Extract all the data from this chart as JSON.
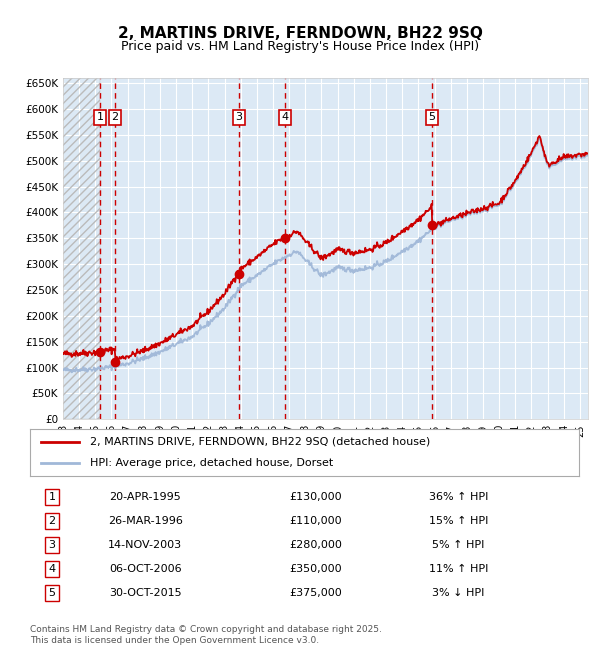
{
  "title": "2, MARTINS DRIVE, FERNDOWN, BH22 9SQ",
  "subtitle": "Price paid vs. HM Land Registry's House Price Index (HPI)",
  "ylim": [
    0,
    660000
  ],
  "yticks": [
    0,
    50000,
    100000,
    150000,
    200000,
    250000,
    300000,
    350000,
    400000,
    450000,
    500000,
    550000,
    600000,
    650000
  ],
  "ytick_labels": [
    "£0",
    "£50K",
    "£100K",
    "£150K",
    "£200K",
    "£250K",
    "£300K",
    "£350K",
    "£400K",
    "£450K",
    "£500K",
    "£550K",
    "£600K",
    "£650K"
  ],
  "xlim_start": 1993.0,
  "xlim_end": 2025.5,
  "plot_bg_color": "#dce9f5",
  "hpi_line_color": "#a0b8d8",
  "price_line_color": "#cc0000",
  "marker_color": "#cc0000",
  "vline_color": "#cc0000",
  "grid_color": "#ffffff",
  "hpi_anchors": [
    [
      1993.0,
      95000
    ],
    [
      1994.0,
      96000
    ],
    [
      1995.0,
      97500
    ],
    [
      1996.0,
      101000
    ],
    [
      1997.0,
      108000
    ],
    [
      1998.0,
      118000
    ],
    [
      1999.0,
      130000
    ],
    [
      2000.0,
      145000
    ],
    [
      2001.0,
      160000
    ],
    [
      2002.0,
      185000
    ],
    [
      2003.0,
      215000
    ],
    [
      2004.0,
      258000
    ],
    [
      2005.0,
      278000
    ],
    [
      2006.0,
      300000
    ],
    [
      2007.0,
      318000
    ],
    [
      2007.5,
      325000
    ],
    [
      2008.0,
      308000
    ],
    [
      2009.0,
      278000
    ],
    [
      2009.5,
      285000
    ],
    [
      2010.0,
      293000
    ],
    [
      2011.0,
      288000
    ],
    [
      2012.0,
      293000
    ],
    [
      2013.0,
      305000
    ],
    [
      2014.0,
      325000
    ],
    [
      2015.0,
      345000
    ],
    [
      2016.0,
      372000
    ],
    [
      2017.0,
      385000
    ],
    [
      2018.0,
      395000
    ],
    [
      2019.0,
      405000
    ],
    [
      2020.0,
      415000
    ],
    [
      2021.0,
      458000
    ],
    [
      2022.0,
      512000
    ],
    [
      2022.5,
      545000
    ],
    [
      2023.0,
      488000
    ],
    [
      2024.0,
      503000
    ],
    [
      2025.0,
      508000
    ],
    [
      2025.5,
      510000
    ]
  ],
  "sales": [
    {
      "num": 1,
      "date_dec": 1995.3,
      "price": 130000,
      "label": "20-APR-1995",
      "amount": "£130,000",
      "pct": "36%",
      "dir": "↑"
    },
    {
      "num": 2,
      "date_dec": 1996.23,
      "price": 110000,
      "label": "26-MAR-1996",
      "amount": "£110,000",
      "pct": "15%",
      "dir": "↑"
    },
    {
      "num": 3,
      "date_dec": 2003.87,
      "price": 280000,
      "label": "14-NOV-2003",
      "amount": "£280,000",
      "pct": "5%",
      "dir": "↑"
    },
    {
      "num": 4,
      "date_dec": 2006.77,
      "price": 350000,
      "label": "06-OCT-2006",
      "amount": "£350,000",
      "pct": "11%",
      "dir": "↑"
    },
    {
      "num": 5,
      "date_dec": 2015.83,
      "price": 375000,
      "label": "30-OCT-2015",
      "amount": "£375,000",
      "pct": "3%",
      "dir": "↓"
    }
  ],
  "legend_line1": "2, MARTINS DRIVE, FERNDOWN, BH22 9SQ (detached house)",
  "legend_line2": "HPI: Average price, detached house, Dorset",
  "footer": "Contains HM Land Registry data © Crown copyright and database right 2025.\nThis data is licensed under the Open Government Licence v3.0.",
  "hatch_region_end": 1995.3
}
